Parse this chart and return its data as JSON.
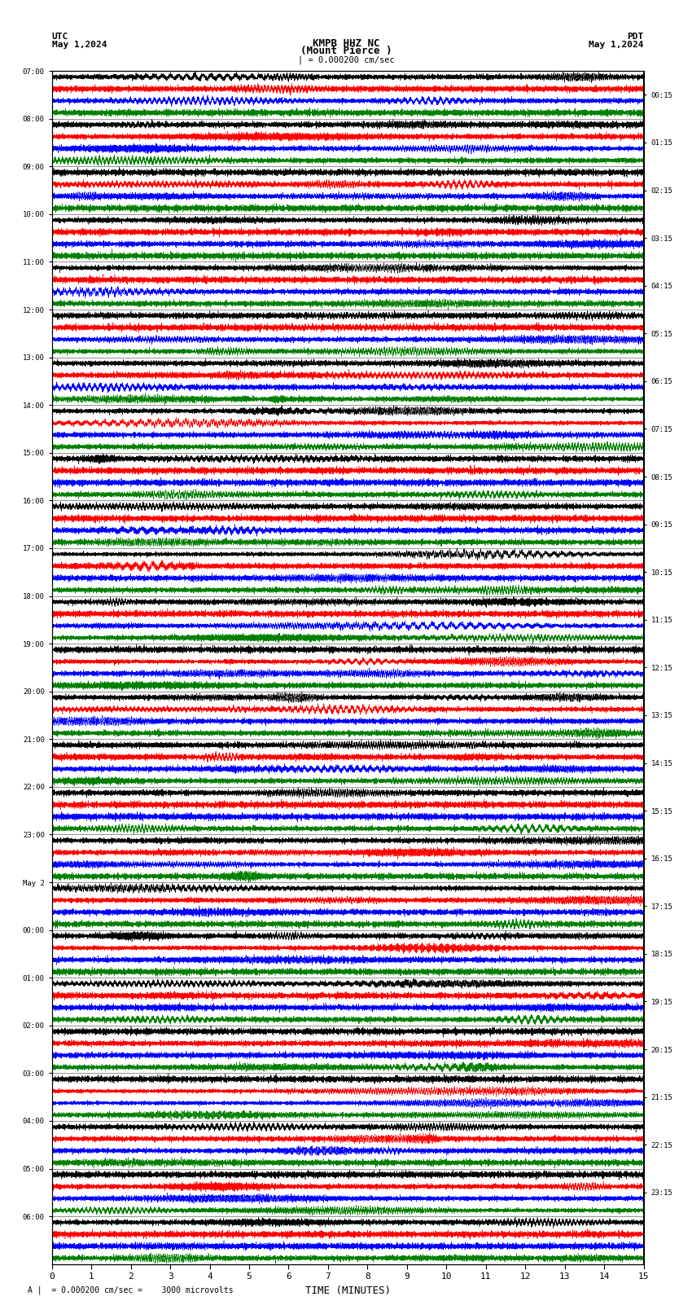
{
  "title_line1": "KMPB HHZ NC",
  "title_line2": "(Mount Pierce )",
  "scale_text": "| = 0.000200 cm/sec",
  "utc_label": "UTC",
  "date_label": "May 1,2024",
  "pdt_label": "PDT",
  "pdt_date": "May 1,2024",
  "xlabel": "TIME (MINUTES)",
  "footer_text": "A |  = 0.000200 cm/sec =    3000 microvolts",
  "left_times": [
    "07:00",
    "08:00",
    "09:00",
    "10:00",
    "11:00",
    "12:00",
    "13:00",
    "14:00",
    "15:00",
    "16:00",
    "17:00",
    "18:00",
    "19:00",
    "20:00",
    "21:00",
    "22:00",
    "23:00",
    "May 2",
    "00:00",
    "01:00",
    "02:00",
    "03:00",
    "04:00",
    "05:00",
    "06:00"
  ],
  "right_times": [
    "00:15",
    "01:15",
    "02:15",
    "03:15",
    "04:15",
    "05:15",
    "06:15",
    "07:15",
    "08:15",
    "09:15",
    "10:15",
    "11:15",
    "12:15",
    "13:15",
    "14:15",
    "15:15",
    "16:15",
    "17:15",
    "18:15",
    "19:15",
    "20:15",
    "21:15",
    "22:15",
    "23:15"
  ],
  "colors": [
    "black",
    "red",
    "blue",
    "green"
  ],
  "n_rows": 25,
  "n_sub_traces": 4,
  "x_min": 0,
  "x_max": 15,
  "bg_color": "white",
  "n_points": 8000,
  "base_amplitude": 0.28,
  "lw": 0.35
}
